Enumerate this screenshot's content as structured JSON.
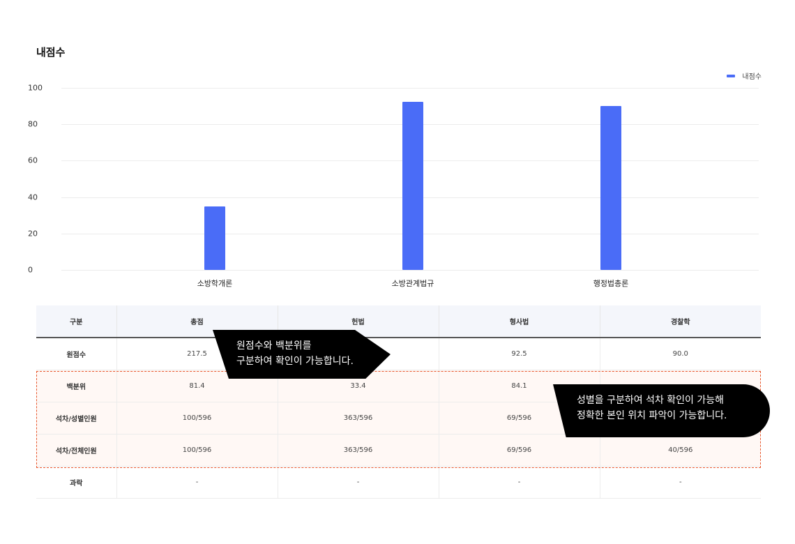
{
  "title": "내점수",
  "legend": {
    "label": "내점수",
    "color": "#4a6cf7"
  },
  "chart_data": {
    "type": "bar",
    "title": "내점수",
    "categories": [
      "소방학개론",
      "소방관계법규",
      "행정법총론"
    ],
    "series": [
      {
        "name": "내점수",
        "values": [
          35.0,
          92.5,
          90.0
        ],
        "color": "#4a6cf7"
      }
    ],
    "yticks": [
      "100",
      "80",
      "60",
      "40",
      "20",
      "0"
    ],
    "ylim": [
      0,
      100
    ],
    "xlabel": "",
    "ylabel": "",
    "grid": true,
    "legend_position": "top-right"
  },
  "table": {
    "headers": [
      "구분",
      "총점",
      "헌법",
      "형사법",
      "경찰학"
    ],
    "rows": [
      {
        "label": "원점수",
        "cells": [
          "217.5",
          "",
          "92.5",
          "90.0"
        ]
      },
      {
        "label": "백분위",
        "cells": [
          "81.4",
          "33.4",
          "84.1",
          ""
        ]
      },
      {
        "label": "석차/성별인원",
        "cells": [
          "100/596",
          "363/596",
          "69/596",
          ""
        ]
      },
      {
        "label": "석차/전체인원",
        "cells": [
          "100/596",
          "363/596",
          "69/596",
          "40/596"
        ]
      },
      {
        "label": "과락",
        "cells": [
          "-",
          "-",
          "-",
          "-"
        ]
      }
    ]
  },
  "callouts": [
    {
      "line1": "원점수와 백분위를",
      "line2": "구분하여 확인이 가능합니다."
    },
    {
      "line1": "성별을 구분하여 석차 확인이 가능해",
      "line2": "정확한 본인 위치 파악이 가능합니다."
    }
  ]
}
